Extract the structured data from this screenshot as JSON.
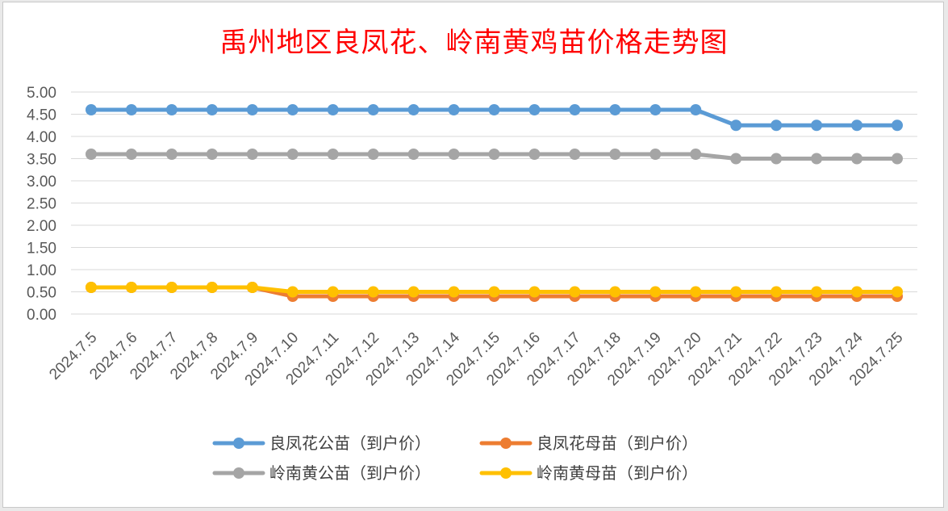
{
  "chart_data": {
    "type": "line",
    "title": "禹州地区良凤花、岭南黄鸡苗价格走势图",
    "categories": [
      "2024.7.5",
      "2024.7.6",
      "2024.7.7",
      "2024.7.8",
      "2024.7.9",
      "2024.7.10",
      "2024.7.11",
      "2024.7.12",
      "2024.7.13",
      "2024.7.14",
      "2024.7.15",
      "2024.7.16",
      "2024.7.17",
      "2024.7.18",
      "2024.7.19",
      "2024.7.20",
      "2024.7.21",
      "2024.7.22",
      "2024.7.23",
      "2024.7.24",
      "2024.7.25"
    ],
    "yticks": [
      "0.00",
      "0.50",
      "1.00",
      "1.50",
      "2.00",
      "2.50",
      "3.00",
      "3.50",
      "4.00",
      "4.50",
      "5.00"
    ],
    "ylim": [
      0,
      5
    ],
    "grid": true,
    "legend_position": "bottom",
    "series": [
      {
        "name": "良凤花公苗（到户价）",
        "color": "#5b9bd5",
        "values": [
          4.6,
          4.6,
          4.6,
          4.6,
          4.6,
          4.6,
          4.6,
          4.6,
          4.6,
          4.6,
          4.6,
          4.6,
          4.6,
          4.6,
          4.6,
          4.6,
          4.25,
          4.25,
          4.25,
          4.25,
          4.25
        ]
      },
      {
        "name": "良凤花母苗（到户价）",
        "color": "#ed7d31",
        "values": [
          0.6,
          0.6,
          0.6,
          0.6,
          0.6,
          0.4,
          0.4,
          0.4,
          0.4,
          0.4,
          0.4,
          0.4,
          0.4,
          0.4,
          0.4,
          0.4,
          0.4,
          0.4,
          0.4,
          0.4,
          0.4
        ]
      },
      {
        "name": "岭南黄公苗（到户价）",
        "color": "#a5a5a5",
        "values": [
          3.6,
          3.6,
          3.6,
          3.6,
          3.6,
          3.6,
          3.6,
          3.6,
          3.6,
          3.6,
          3.6,
          3.6,
          3.6,
          3.6,
          3.6,
          3.6,
          3.5,
          3.5,
          3.5,
          3.5,
          3.5
        ]
      },
      {
        "name": "岭南黄母苗（到户价）",
        "color": "#ffc000",
        "values": [
          0.6,
          0.6,
          0.6,
          0.6,
          0.6,
          0.5,
          0.5,
          0.5,
          0.5,
          0.5,
          0.5,
          0.5,
          0.5,
          0.5,
          0.5,
          0.5,
          0.5,
          0.5,
          0.5,
          0.5,
          0.5
        ]
      }
    ]
  }
}
